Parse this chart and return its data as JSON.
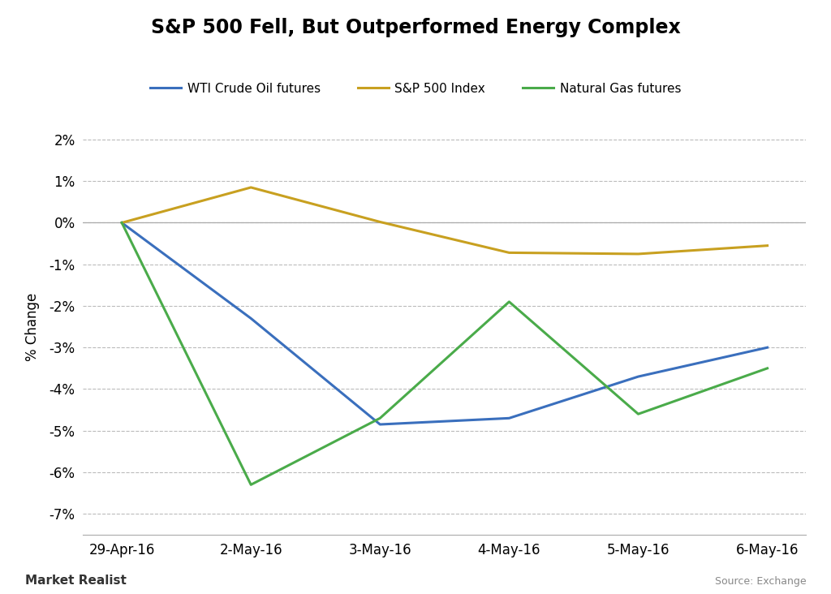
{
  "title": "S&P 500 Fell, But Outperformed Energy Complex",
  "xlabel": "",
  "ylabel": "% Change",
  "x_labels": [
    "29-Apr-16",
    "2-May-16",
    "3-May-16",
    "4-May-16",
    "5-May-16",
    "6-May-16"
  ],
  "series": [
    {
      "name": "WTI Crude Oil futures",
      "color": "#3a6fbd",
      "values": [
        0.0,
        -2.3,
        -4.85,
        -4.7,
        -3.7,
        -3.0
      ]
    },
    {
      "name": "S&P 500 Index",
      "color": "#c8a020",
      "values": [
        0.0,
        0.85,
        0.02,
        -0.72,
        -0.75,
        -0.55
      ]
    },
    {
      "name": "Natural Gas futures",
      "color": "#4aab4a",
      "values": [
        0.0,
        -6.3,
        -4.7,
        -1.9,
        -4.6,
        -3.5
      ]
    }
  ],
  "ylim": [
    -7.5,
    2.5
  ],
  "yticks": [
    -7,
    -6,
    -5,
    -4,
    -3,
    -2,
    -1,
    0,
    1,
    2
  ],
  "background_color": "#ffffff",
  "grid_color": "#bbbbbb",
  "source_text": "Source: Exchange",
  "watermark": "Market Realist",
  "title_fontsize": 17,
  "axis_label_fontsize": 12,
  "tick_fontsize": 12,
  "legend_fontsize": 11,
  "line_width": 2.2
}
